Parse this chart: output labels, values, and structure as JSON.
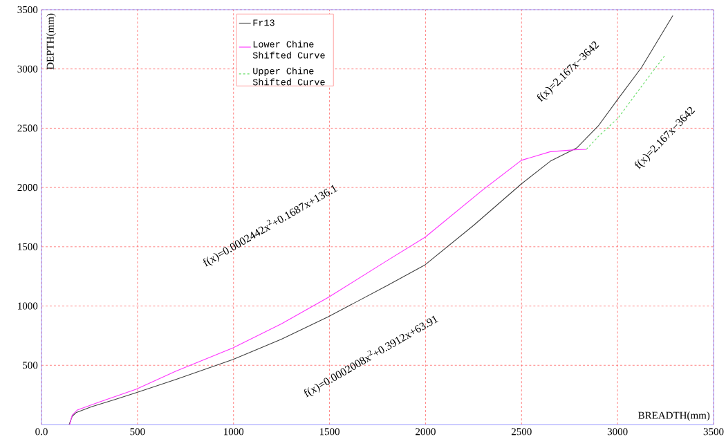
{
  "chart_data": {
    "type": "line",
    "xlabel": "BREADTH(mm)",
    "ylabel": "DEPTH(mm)",
    "xlim": [
      0,
      3500
    ],
    "ylim": [
      0,
      3500
    ],
    "xticks": [
      {
        "value": 0,
        "label": "0.0"
      },
      500,
      1000,
      1500,
      2000,
      2500,
      3000,
      3500
    ],
    "yticks": [
      500,
      1000,
      1500,
      2000,
      2500,
      3000,
      3500
    ],
    "grid": true,
    "legend": "top",
    "series": [
      {
        "name": "Fr13",
        "color": "#404040",
        "line_style": "solid",
        "x": [
          144,
          160,
          180,
          260,
          380,
          492,
          700,
          996,
          1250,
          1494,
          1800,
          1998,
          2250,
          2499,
          2650,
          2787,
          2900,
          3003,
          3125,
          3288
        ],
        "values": [
          0,
          70,
          100,
          150,
          210,
          268,
          380,
          548,
          720,
          910,
          1172,
          1348,
          1680,
          2030,
          2222,
          2333,
          2520,
          2748,
          3013,
          3450
        ]
      },
      {
        "name": "Lower Chine Shifted Curve",
        "color": "#ff33ff",
        "line_style": "solid",
        "x": [
          147,
          160,
          186,
          300,
          492,
          700,
          996,
          1250,
          1494,
          1800,
          1998,
          2297,
          2499,
          2650,
          2776,
          2838
        ],
        "values": [
          0,
          80,
          122,
          190,
          297,
          450,
          646,
          850,
          1073,
          1383,
          1581,
          1978,
          2229,
          2302,
          2318,
          2322
        ]
      },
      {
        "name": "Upper Chine Shifted Curve",
        "color": "#66dd66",
        "line_style": "dashed",
        "x": [
          2838,
          2900,
          3003,
          3125,
          3245
        ],
        "values": [
          2322,
          2430,
          2586,
          2853,
          3111
        ]
      }
    ],
    "annotations": [
      "f(x)=0.0002442x$^{2}$+0.1687x+136.1",
      "f(x)=0.0002008x$^{2}$+0.3912x+63.91",
      "f(x)=2.167x−3642",
      "f(x)=2.167x−3642"
    ]
  }
}
